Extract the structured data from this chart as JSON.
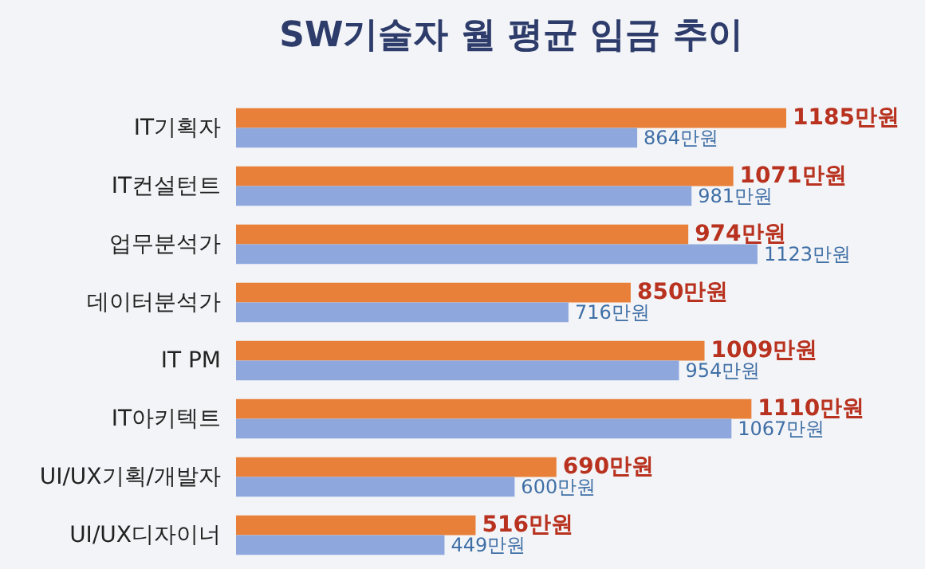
{
  "chart_data": {
    "type": "bar",
    "orientation": "horizontal",
    "title": "SW기술자 월 평균 임금 추이",
    "categories": [
      "IT기획자",
      "IT컨설턴트",
      "업무분석가",
      "데이터분석가",
      "IT PM",
      "IT아키텍트",
      "UI/UX기획/개발자",
      "UI/UX디자이너"
    ],
    "series": [
      {
        "color": "#e8803a",
        "values": [
          1185,
          1071,
          974,
          850,
          1009,
          1110,
          690,
          516
        ],
        "value_labels": [
          "1185만원",
          "1071만원",
          "974만원",
          "850만원",
          "1009만원",
          "1110만원",
          "690만원",
          "516만원"
        ]
      },
      {
        "color": "#8ea8de",
        "values": [
          864,
          981,
          1123,
          716,
          954,
          1067,
          600,
          449
        ],
        "value_labels": [
          "864만원",
          "981만원",
          "1123만원",
          "716만원",
          "954만원",
          "1067만원",
          "600만원",
          "449만원"
        ]
      }
    ],
    "legend": false
  }
}
